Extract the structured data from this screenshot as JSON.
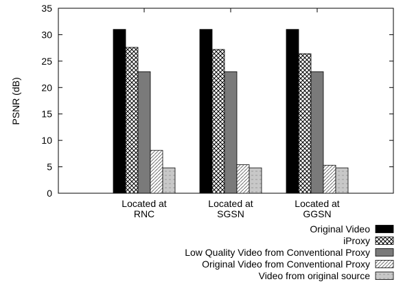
{
  "chart_data": {
    "type": "bar",
    "title": "",
    "xlabel": "",
    "ylabel": "PSNR (dB)",
    "ylim": [
      0,
      35
    ],
    "yticks": [
      0,
      5,
      10,
      15,
      20,
      25,
      30,
      35
    ],
    "categories": [
      [
        "Located at",
        "RNC"
      ],
      [
        "Located at",
        "SGSN"
      ],
      [
        "Located at",
        "GGSN"
      ]
    ],
    "series": [
      {
        "name": "Original Video",
        "pattern": "solid-black",
        "values": [
          31.0,
          31.0,
          31.0
        ]
      },
      {
        "name": "iProxy",
        "pattern": "crosshatch",
        "values": [
          27.6,
          27.2,
          26.4
        ]
      },
      {
        "name": "Low Quality Video from Conventional Proxy",
        "pattern": "solid-gray",
        "values": [
          23.0,
          23.0,
          23.0
        ]
      },
      {
        "name": "Original Video from Conventional Proxy",
        "pattern": "diagonal",
        "values": [
          8.1,
          5.4,
          5.3
        ]
      },
      {
        "name": "Video from original source",
        "pattern": "light-gray-dashed",
        "values": [
          4.8,
          4.8,
          4.8
        ]
      }
    ],
    "legend_position": "bottom-right",
    "grid": false
  }
}
